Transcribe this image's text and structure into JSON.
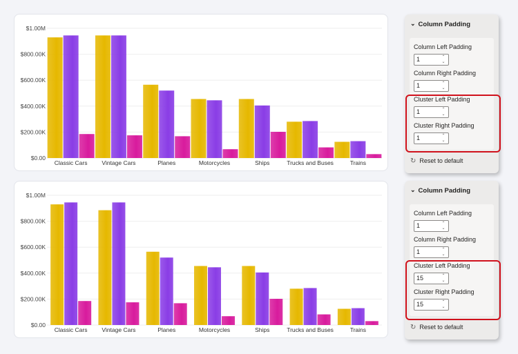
{
  "colors": {
    "series1": "#e6b800",
    "series2": "#8a3de6",
    "series3": "#d81b9d",
    "highlight": "#d0101b"
  },
  "chart_data": [
    {
      "type": "bar",
      "categories": [
        "Classic Cars",
        "Vintage Cars",
        "Planes",
        "Motorcycles",
        "Ships",
        "Trucks and Buses",
        "Trains"
      ],
      "series": [
        {
          "values": [
            930000,
            945000,
            565000,
            455000,
            455000,
            280000,
            125000
          ]
        },
        {
          "values": [
            945000,
            945000,
            520000,
            445000,
            405000,
            285000,
            130000
          ]
        },
        {
          "values": [
            185000,
            175000,
            168000,
            68000,
            202000,
            82000,
            30000
          ]
        }
      ],
      "yticks": [
        "$0.00",
        "$200.00K",
        "$400.00K",
        "$600.00K",
        "$800.00K",
        "$1.00M"
      ],
      "ylim": [
        0,
        1000000
      ],
      "grid": true
    },
    {
      "type": "bar",
      "categories": [
        "Classic Cars",
        "Vintage Cars",
        "Planes",
        "Motorcycles",
        "Ships",
        "Trucks and Buses",
        "Trains"
      ],
      "series": [
        {
          "values": [
            930000,
            885000,
            565000,
            455000,
            455000,
            280000,
            125000
          ]
        },
        {
          "values": [
            945000,
            945000,
            520000,
            445000,
            405000,
            285000,
            130000
          ]
        },
        {
          "values": [
            185000,
            175000,
            168000,
            68000,
            202000,
            82000,
            30000
          ]
        }
      ],
      "yticks": [
        "$0.00",
        "$200.00K",
        "$400.00K",
        "$600.00K",
        "$800.00K",
        "$1.00M"
      ],
      "ylim": [
        0,
        1000000
      ],
      "grid": true
    }
  ],
  "panels": [
    {
      "title": "Column Padding",
      "col_left_label": "Column Left Padding",
      "col_left_value": "1",
      "col_right_label": "Column Right Padding",
      "col_right_value": "1",
      "cluster_left_label": "Cluster Left Padding",
      "cluster_left_value": "1",
      "cluster_right_label": "Cluster Right Padding",
      "cluster_right_value": "1",
      "reset_label": "Reset to default"
    },
    {
      "title": "Column Padding",
      "col_left_label": "Column Left Padding",
      "col_left_value": "1",
      "col_right_label": "Column Right Padding",
      "col_right_value": "1",
      "cluster_left_label": "Cluster Left Padding",
      "cluster_left_value": "15",
      "cluster_right_label": "Cluster Right Padding",
      "cluster_right_value": "15",
      "reset_label": "Reset to default"
    }
  ]
}
